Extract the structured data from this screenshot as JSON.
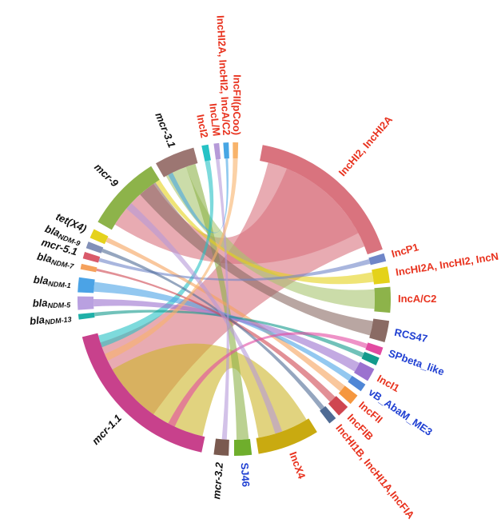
{
  "colors": {
    "gene_label": "#111111",
    "replicon_label": "#e8321e",
    "other_label": "#1f3fd2"
  },
  "chart_data": {
    "type": "chord",
    "segments": [
      {
        "id": "incHI2_incHI2A",
        "label": "IncHI2, IncHI2A",
        "group": "replicon",
        "color": "#d9737e"
      },
      {
        "id": "incP1",
        "label": "IncP1",
        "group": "replicon",
        "color": "#6f86c8"
      },
      {
        "id": "incHI2A_incHI2_incN",
        "label": "IncHI2A, IncHI2, IncN",
        "group": "replicon",
        "color": "#e4d21a"
      },
      {
        "id": "incAC2",
        "label": "IncA/C2",
        "group": "replicon",
        "color": "#8db34a"
      },
      {
        "id": "rcs47",
        "label": "RCS47",
        "group": "other",
        "color": "#8a6b64"
      },
      {
        "id": "spbeta_like",
        "label": "SPbeta_like",
        "group": "other",
        "color": "#e24aa1"
      },
      {
        "id": "spbeta_like_b",
        "label": "",
        "group": "other",
        "color": "#129a8c"
      },
      {
        "id": "inci1",
        "label": "IncI1",
        "group": "replicon",
        "color": "#9b72cf"
      },
      {
        "id": "vb_abam_me3",
        "label": "vB_AbaM_ME3",
        "group": "other",
        "color": "#4f86d6"
      },
      {
        "id": "incfii",
        "label": "IncFII",
        "group": "replicon",
        "color": "#f5973f"
      },
      {
        "id": "incfib",
        "label": "IncFIB",
        "group": "replicon",
        "color": "#cf4650"
      },
      {
        "id": "inchi1b",
        "label": "IncHI1B, IncHI1A,IncFIA",
        "group": "replicon",
        "color": "#4f6b94"
      },
      {
        "id": "incx4",
        "label": "IncX4",
        "group": "replicon",
        "color": "#c9aa10"
      },
      {
        "id": "sj46",
        "label": "SJ46",
        "group": "other",
        "color": "#6fae2c"
      },
      {
        "id": "mcr32",
        "label": "mcr-3.2",
        "group": "gene",
        "color": "#7a5a4f"
      },
      {
        "id": "mcr11",
        "label": "mcr-1.1",
        "group": "gene",
        "color": "#c8418c"
      },
      {
        "id": "ndm13",
        "label": "bla",
        "sub": "NDM-13",
        "group": "gene",
        "color": "#1fb0a8"
      },
      {
        "id": "ndm5",
        "label": "bla",
        "sub": "NDM-5",
        "group": "gene",
        "color": "#b9a0e0"
      },
      {
        "id": "ndm1",
        "label": "bla",
        "sub": "NDM-1",
        "group": "gene",
        "color": "#4ba3e6"
      },
      {
        "id": "ndm7",
        "label": "bla",
        "sub": "NDM-7",
        "group": "gene",
        "color": "#f5a15c"
      },
      {
        "id": "mcr51",
        "label": "mcr-5.1",
        "group": "gene",
        "color": "#d95a6a"
      },
      {
        "id": "ndm9",
        "label": "bla",
        "sub": "NDM-9",
        "group": "gene",
        "color": "#8290b8"
      },
      {
        "id": "tetx4",
        "label": "tet(X4)",
        "group": "gene",
        "color": "#e5d21c"
      },
      {
        "id": "mcr9",
        "label": "mcr-9",
        "group": "gene",
        "color": "#8db34a"
      },
      {
        "id": "mcr31",
        "label": "mcr-3.1",
        "group": "gene",
        "color": "#9c7672"
      },
      {
        "id": "incI2",
        "label": "IncI2",
        "group": "replicon",
        "color": "#26c2c5"
      },
      {
        "id": "incLM",
        "label": "IncL/M",
        "group": "replicon",
        "color": "#b69ad8"
      },
      {
        "id": "incHI2A_incHI2_incAC2",
        "label": "IncHI2A, IncHI2, IncA/C2",
        "group": "replicon",
        "color": "#47a6e4"
      },
      {
        "id": "incFII_pcoo",
        "label": "IncFII(pCoo)",
        "group": "replicon",
        "color": "#f8b36a"
      }
    ],
    "links": [
      {
        "source": "mcr11",
        "target": "incHI2_incHI2A",
        "color": "#d9737e"
      },
      {
        "source": "mcr9",
        "target": "incHI2_incHI2A",
        "color": "#d9737e"
      },
      {
        "source": "mcr11",
        "target": "incx4",
        "color": "#cdb52a"
      },
      {
        "source": "mcr31",
        "target": "incAC2",
        "color": "#a9c56f"
      },
      {
        "source": "mcr31",
        "target": "sj46",
        "color": "#8db34a"
      },
      {
        "source": "mcr9",
        "target": "rcs47",
        "color": "#8a6b64"
      },
      {
        "source": "mcr9",
        "target": "incHI2A_incHI2_incN",
        "color": "#e4d21a"
      },
      {
        "source": "mcr11",
        "target": "incI2",
        "color": "#26c2c5"
      },
      {
        "source": "tetx4",
        "target": "incfii",
        "color": "#f5a15c"
      },
      {
        "source": "ndm1",
        "target": "vb_abam_me3",
        "color": "#4ba3e6"
      },
      {
        "source": "ndm5",
        "target": "inci1",
        "color": "#9b72cf"
      },
      {
        "source": "ndm13",
        "target": "spbeta_like_b",
        "color": "#129a8c"
      },
      {
        "source": "ndm7",
        "target": "incfib",
        "color": "#cf4650"
      },
      {
        "source": "mcr51",
        "target": "incP1",
        "color": "#6f86c8"
      },
      {
        "source": "ndm9",
        "target": "inchi1b",
        "color": "#4f6b94"
      },
      {
        "source": "mcr32",
        "target": "incLM",
        "color": "#b69ad8"
      },
      {
        "source": "mcr31",
        "target": "incHI2A_incHI2_incAC2",
        "color": "#47a6e4"
      },
      {
        "source": "mcr11",
        "target": "incFII_pcoo",
        "color": "#f8b36a"
      },
      {
        "source": "mcr11",
        "target": "spbeta_like",
        "color": "#e24aa1"
      },
      {
        "source": "mcr9",
        "target": "incx4",
        "color": "#b69ad8"
      }
    ]
  }
}
